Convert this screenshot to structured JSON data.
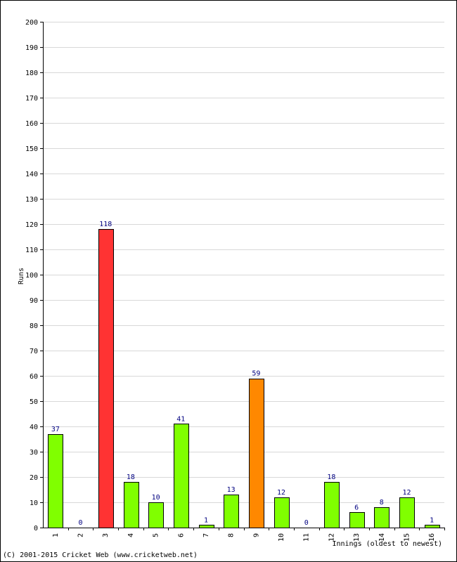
{
  "chart_data": {
    "type": "bar",
    "categories": [
      "1",
      "2",
      "3",
      "4",
      "5",
      "6",
      "7",
      "8",
      "9",
      "10",
      "11",
      "12",
      "13",
      "14",
      "15",
      "16"
    ],
    "values": [
      37,
      0,
      118,
      18,
      10,
      41,
      1,
      13,
      59,
      12,
      0,
      18,
      6,
      8,
      12,
      1
    ],
    "bar_colors": [
      "#80ff00",
      "#80ff00",
      "#ff3333",
      "#80ff00",
      "#80ff00",
      "#80ff00",
      "#80ff00",
      "#80ff00",
      "#ff8800",
      "#80ff00",
      "#80ff00",
      "#80ff00",
      "#80ff00",
      "#80ff00",
      "#80ff00",
      "#80ff00"
    ],
    "ylabel": "Runs",
    "xlabel": "Innings (oldest to newest)",
    "ylim": [
      0,
      200
    ],
    "ytick_step": 10,
    "grid": true
  },
  "colors": {
    "grid": "#d8d8d8",
    "bar_outline": "#000000",
    "data_label": "#000080"
  },
  "footer": {
    "copyright": "(C) 2001-2015 Cricket Web (www.cricketweb.net)"
  }
}
